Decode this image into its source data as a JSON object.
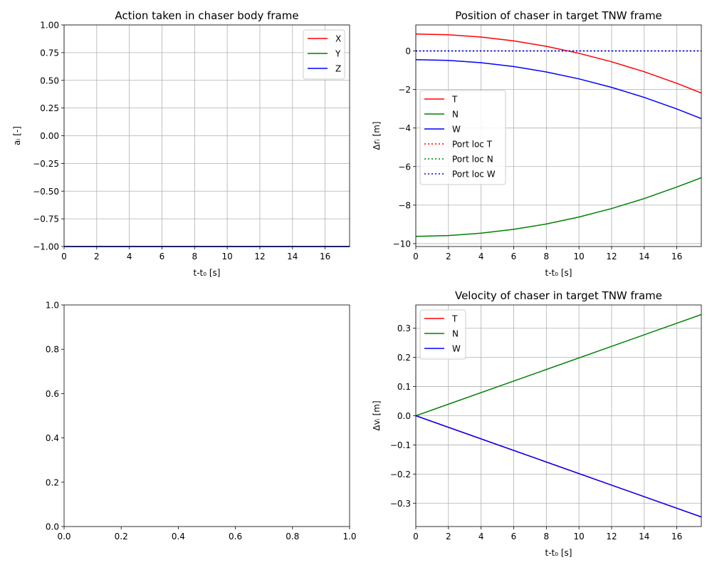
{
  "chart_data": [
    {
      "id": "action",
      "type": "line",
      "title": "Action taken in chaser body frame",
      "xlabel": "t-t₀ [s]",
      "ylabel": "aᵢ [-]",
      "xlim": [
        0,
        17.5
      ],
      "ylim": [
        -1.0,
        1.0
      ],
      "xticks": [
        0,
        2,
        4,
        6,
        8,
        10,
        12,
        14,
        16
      ],
      "xtick_labels": [
        "0",
        "2",
        "4",
        "6",
        "8",
        "10",
        "12",
        "14",
        "16"
      ],
      "yticks": [
        1.0,
        0.75,
        0.5,
        0.25,
        0.0,
        -0.25,
        -0.5,
        -0.75,
        -1.0
      ],
      "ytick_labels": [
        "1.00",
        "0.75",
        "0.50",
        "0.25",
        "0.00",
        "−0.25",
        "−0.50",
        "−0.75",
        "−1.00"
      ],
      "grid": true,
      "legend": "top-right",
      "series": [
        {
          "name": "X",
          "color": "#ff0000",
          "style": "solid",
          "x": [
            0,
            17.5
          ],
          "y": [
            -1.0,
            -1.0
          ]
        },
        {
          "name": "Y",
          "color": "#008000",
          "style": "solid",
          "x": [
            0,
            17.5
          ],
          "y": [
            -1.0,
            -1.0
          ]
        },
        {
          "name": "Z",
          "color": "#0000ff",
          "style": "solid",
          "x": [
            0,
            17.5
          ],
          "y": [
            -1.0,
            -1.0
          ]
        }
      ]
    },
    {
      "id": "position",
      "type": "line",
      "title": "Position of chaser in target TNW frame",
      "xlabel": "t-t₀ [s]",
      "ylabel": "Δrᵢ [m]",
      "xlim": [
        0,
        17.5
      ],
      "ylim": [
        -10.15,
        1.35
      ],
      "xticks": [
        0,
        2,
        4,
        6,
        8,
        10,
        12,
        14,
        16
      ],
      "xtick_labels": [
        "0",
        "2",
        "4",
        "6",
        "8",
        "10",
        "12",
        "14",
        "16"
      ],
      "yticks": [
        0,
        -2,
        -4,
        -6,
        -8,
        -10
      ],
      "ytick_labels": [
        "0",
        "−2",
        "−4",
        "−6",
        "−8",
        "−10"
      ],
      "grid": true,
      "legend": "center-left",
      "series": [
        {
          "name": "T",
          "color": "#ff0000",
          "style": "solid",
          "x": [
            0,
            2,
            4,
            6,
            8,
            10,
            12,
            14,
            16,
            17.5
          ],
          "y": [
            0.88,
            0.84,
            0.72,
            0.52,
            0.24,
            -0.12,
            -0.56,
            -1.08,
            -1.68,
            -2.18
          ]
        },
        {
          "name": "N",
          "color": "#008000",
          "style": "solid",
          "x": [
            0,
            2,
            4,
            6,
            8,
            10,
            12,
            14,
            16,
            17.5
          ],
          "y": [
            -9.62,
            -9.58,
            -9.46,
            -9.26,
            -8.98,
            -8.62,
            -8.18,
            -7.66,
            -7.06,
            -6.58
          ]
        },
        {
          "name": "W",
          "color": "#0000ff",
          "style": "solid",
          "x": [
            0,
            2,
            4,
            6,
            8,
            10,
            12,
            14,
            16,
            17.5
          ],
          "y": [
            -0.45,
            -0.49,
            -0.61,
            -0.81,
            -1.09,
            -1.45,
            -1.89,
            -2.41,
            -3.01,
            -3.51
          ]
        },
        {
          "name": "Port loc T",
          "color": "#ff0000",
          "style": "dotted",
          "x": [
            0,
            17.5
          ],
          "y": [
            0,
            0
          ]
        },
        {
          "name": "Port loc N",
          "color": "#008000",
          "style": "dotted",
          "x": [
            0,
            17.5
          ],
          "y": [
            0,
            0
          ]
        },
        {
          "name": "Port loc W",
          "color": "#0000ff",
          "style": "dotted",
          "x": [
            0,
            17.5
          ],
          "y": [
            0,
            0
          ]
        }
      ]
    },
    {
      "id": "empty",
      "type": "line",
      "title": "",
      "xlabel": "",
      "ylabel": "",
      "xlim": [
        0,
        1
      ],
      "ylim": [
        0,
        1
      ],
      "xticks": [
        0,
        0.2,
        0.4,
        0.6,
        0.8,
        1.0
      ],
      "xtick_labels": [
        "0.0",
        "0.2",
        "0.4",
        "0.6",
        "0.8",
        "1.0"
      ],
      "yticks": [
        0,
        0.2,
        0.4,
        0.6,
        0.8,
        1.0
      ],
      "ytick_labels": [
        "0.0",
        "0.2",
        "0.4",
        "0.6",
        "0.8",
        "1.0"
      ],
      "grid": false,
      "series": []
    },
    {
      "id": "velocity",
      "type": "line",
      "title": "Velocity of chaser in target TNW frame",
      "xlabel": "t-t₀ [s]",
      "ylabel": "Δvᵢ [m]",
      "xlim": [
        0,
        17.5
      ],
      "ylim": [
        -0.38,
        0.38
      ],
      "xticks": [
        0,
        2,
        4,
        6,
        8,
        10,
        12,
        14,
        16
      ],
      "xtick_labels": [
        "0",
        "2",
        "4",
        "6",
        "8",
        "10",
        "12",
        "14",
        "16"
      ],
      "yticks": [
        0.3,
        0.2,
        0.1,
        0.0,
        -0.1,
        -0.2,
        -0.3
      ],
      "ytick_labels": [
        "0.3",
        "0.2",
        "0.1",
        "0.0",
        "−0.1",
        "−0.2",
        "−0.3"
      ],
      "grid": true,
      "legend": "top-left",
      "series": [
        {
          "name": "T",
          "color": "#ff0000",
          "style": "solid",
          "x": [
            0,
            17.5
          ],
          "y": [
            0.0,
            -0.347
          ]
        },
        {
          "name": "N",
          "color": "#008000",
          "style": "solid",
          "x": [
            0,
            17.5
          ],
          "y": [
            0.0,
            0.347
          ]
        },
        {
          "name": "W",
          "color": "#0000ff",
          "style": "solid",
          "x": [
            0,
            17.5
          ],
          "y": [
            0.0,
            -0.347
          ]
        }
      ]
    }
  ]
}
